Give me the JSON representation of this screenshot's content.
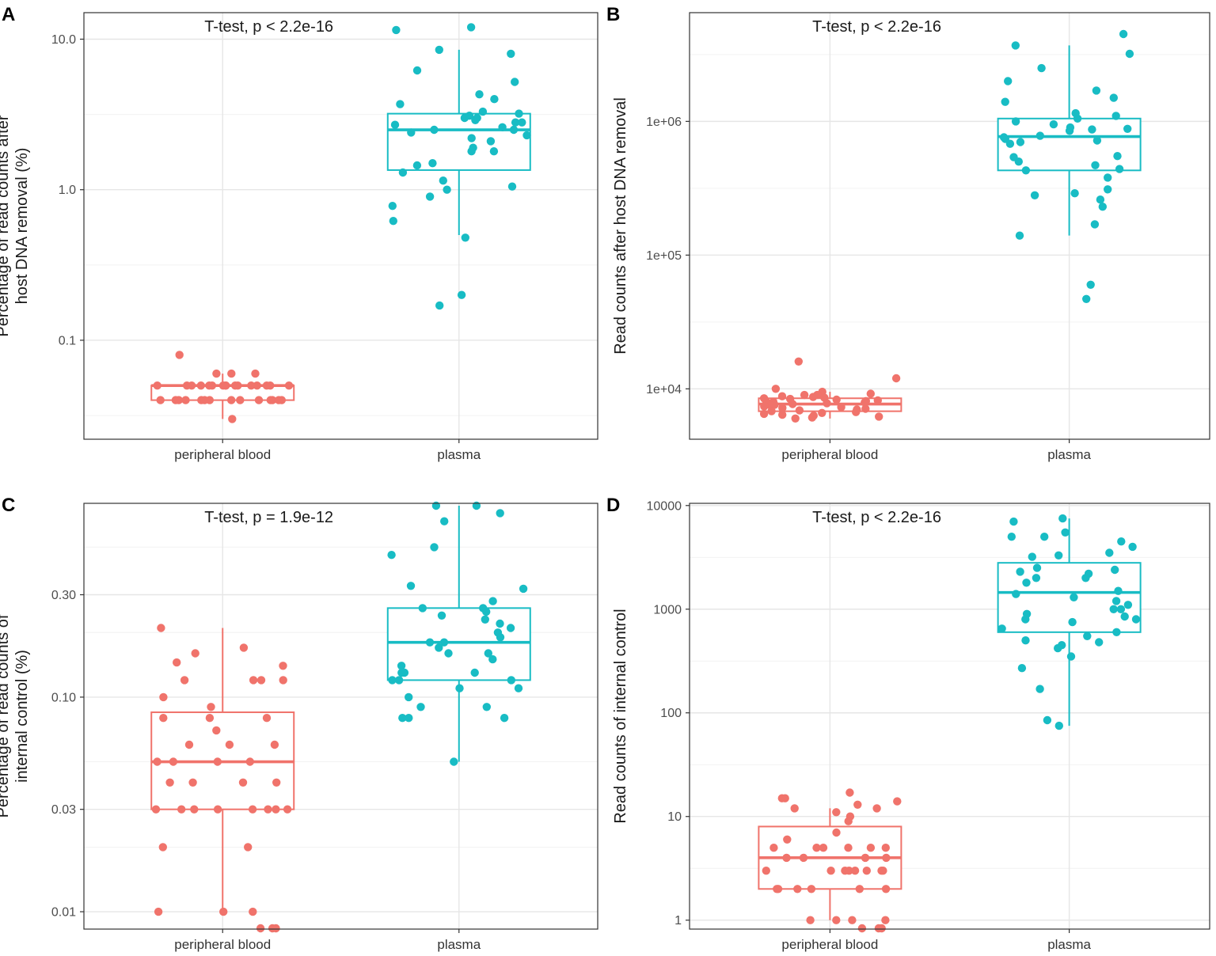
{
  "colors": {
    "peripheral_blood": "#F0736B",
    "plasma": "#18BCC4"
  },
  "chart_data": [
    {
      "panel": "A",
      "type": "box",
      "annotation": "T-test, p < 2.2e-16",
      "ylabel": [
        "Percentage of read counts after",
        "host DNA removal (%)"
      ],
      "yscale": "log10",
      "ylim": [
        0.022,
        15
      ],
      "yticks": [
        {
          "v": 0.1,
          "label": "0.1"
        },
        {
          "v": 1,
          "label": "1.0"
        },
        {
          "v": 10,
          "label": "10.0"
        }
      ],
      "yminor": [
        0.0316,
        0.316,
        3.16
      ],
      "categories": [
        "peripheral blood",
        "plasma"
      ],
      "series": [
        {
          "name": "peripheral blood",
          "color_key": "peripheral_blood",
          "box": {
            "q1": 0.04,
            "median": 0.05,
            "q3": 0.05,
            "lo": 0.03,
            "hi": 0.06
          },
          "points": [
            0.08,
            0.06,
            0.06,
            0.06,
            0.05,
            0.05,
            0.05,
            0.05,
            0.05,
            0.05,
            0.05,
            0.05,
            0.05,
            0.05,
            0.05,
            0.05,
            0.05,
            0.05,
            0.05,
            0.05,
            0.04,
            0.04,
            0.04,
            0.04,
            0.04,
            0.04,
            0.04,
            0.04,
            0.04,
            0.04,
            0.04,
            0.04,
            0.04,
            0.04,
            0.03
          ]
        },
        {
          "name": "plasma",
          "color_key": "plasma",
          "box": {
            "q1": 1.35,
            "median": 2.5,
            "q3": 3.2,
            "lo": 0.5,
            "hi": 8.5
          },
          "points": [
            12,
            11.5,
            8.5,
            8.0,
            6.2,
            5.2,
            4.3,
            4.0,
            3.7,
            3.3,
            3.2,
            3.1,
            3.0,
            3.0,
            2.9,
            2.8,
            2.8,
            2.7,
            2.6,
            2.5,
            2.5,
            2.4,
            2.3,
            2.2,
            2.1,
            1.9,
            1.8,
            1.8,
            1.5,
            1.45,
            1.3,
            1.15,
            1.05,
            1.0,
            0.9,
            0.78,
            0.62,
            0.48,
            0.2,
            0.17
          ]
        }
      ]
    },
    {
      "panel": "B",
      "type": "box",
      "annotation": "T-test, p < 2.2e-16",
      "ylabel": [
        "Read counts after host DNA removal"
      ],
      "yscale": "log10",
      "ylim": [
        4200,
        6500000
      ],
      "yticks": [
        {
          "v": 10000,
          "label": "1e+04"
        },
        {
          "v": 100000,
          "label": "1e+05"
        },
        {
          "v": 1000000,
          "label": "1e+06"
        }
      ],
      "yminor": [
        31600,
        316000,
        3160000
      ],
      "categories": [
        "peripheral blood",
        "plasma"
      ],
      "series": [
        {
          "name": "peripheral blood",
          "color_key": "peripheral_blood",
          "box": {
            "q1": 6800,
            "median": 7700,
            "q3": 8500,
            "lo": 6000,
            "hi": 9500
          },
          "points": [
            16000,
            12000,
            10000,
            9500,
            9200,
            9000,
            9000,
            8800,
            8700,
            8600,
            8500,
            8400,
            8300,
            8200,
            8100,
            8000,
            8000,
            7900,
            7800,
            7700,
            7600,
            7500,
            7400,
            7300,
            7200,
            7100,
            7000,
            6900,
            6800,
            6700,
            6600,
            6500,
            6400,
            6300,
            6200,
            6100,
            6000
          ]
        },
        {
          "name": "plasma",
          "color_key": "plasma",
          "box": {
            "q1": 430000,
            "median": 770000,
            "q3": 1050000,
            "lo": 140000,
            "hi": 3700000
          },
          "points": [
            4500000,
            3700000,
            3200000,
            2500000,
            2000000,
            1700000,
            1500000,
            1400000,
            1150000,
            1100000,
            1050000,
            1000000,
            950000,
            900000,
            880000,
            870000,
            850000,
            780000,
            760000,
            740000,
            720000,
            700000,
            680000,
            550000,
            540000,
            500000,
            470000,
            440000,
            430000,
            380000,
            310000,
            290000,
            280000,
            260000,
            230000,
            170000,
            140000,
            60000,
            47000
          ]
        }
      ]
    },
    {
      "panel": "C",
      "type": "box",
      "annotation": "T-test, p = 1.9e-12",
      "ylabel": [
        "Percentage of read counts of",
        "internal control (%)"
      ],
      "yscale": "log10",
      "ylim": [
        0.0083,
        0.8
      ],
      "yticks": [
        {
          "v": 0.01,
          "label": "0.01"
        },
        {
          "v": 0.03,
          "label": "0.03"
        },
        {
          "v": 0.1,
          "label": "0.10"
        },
        {
          "v": 0.3,
          "label": "0.30"
        }
      ],
      "yminor": [
        0.02,
        0.05,
        0.2,
        0.5
      ],
      "categories": [
        "peripheral blood",
        "plasma"
      ],
      "series": [
        {
          "name": "peripheral blood",
          "color_key": "peripheral_blood",
          "box": {
            "q1": 0.03,
            "median": 0.05,
            "q3": 0.085,
            "lo": 0.01,
            "hi": 0.21
          },
          "points": [
            0.21,
            0.17,
            0.16,
            0.145,
            0.14,
            0.12,
            0.12,
            0.12,
            0.12,
            0.1,
            0.09,
            0.08,
            0.08,
            0.08,
            0.07,
            0.06,
            0.06,
            0.06,
            0.05,
            0.05,
            0.05,
            0.05,
            0.04,
            0.04,
            0.04,
            0.04,
            0.03,
            0.03,
            0.03,
            0.03,
            0.03,
            0.03,
            0.03,
            0.03,
            0.02,
            0.02,
            0.01,
            0.01,
            0.01,
            0.0083,
            0.0083,
            0.0083
          ]
        },
        {
          "name": "plasma",
          "color_key": "plasma",
          "box": {
            "q1": 0.12,
            "median": 0.18,
            "q3": 0.26,
            "lo": 0.05,
            "hi": 0.78
          },
          "points": [
            0.78,
            0.78,
            0.72,
            0.66,
            0.5,
            0.46,
            0.33,
            0.32,
            0.28,
            0.26,
            0.26,
            0.25,
            0.24,
            0.23,
            0.22,
            0.21,
            0.2,
            0.19,
            0.18,
            0.18,
            0.17,
            0.16,
            0.16,
            0.15,
            0.14,
            0.13,
            0.13,
            0.13,
            0.12,
            0.12,
            0.12,
            0.11,
            0.11,
            0.1,
            0.09,
            0.09,
            0.08,
            0.08,
            0.08,
            0.05
          ]
        }
      ]
    },
    {
      "panel": "D",
      "type": "box",
      "annotation": "T-test, p < 2.2e-16",
      "ylabel": [
        "Read counts of internal control"
      ],
      "yscale": "log10",
      "ylim": [
        0.82,
        10500
      ],
      "yticks": [
        {
          "v": 1,
          "label": "1"
        },
        {
          "v": 10,
          "label": "10"
        },
        {
          "v": 100,
          "label": "100"
        },
        {
          "v": 1000,
          "label": "1000"
        },
        {
          "v": 10000,
          "label": "10000"
        }
      ],
      "yminor": [
        3.16,
        31.6,
        316,
        3160
      ],
      "categories": [
        "peripheral blood",
        "plasma"
      ],
      "series": [
        {
          "name": "peripheral blood",
          "color_key": "peripheral_blood",
          "box": {
            "q1": 2,
            "median": 4,
            "q3": 8,
            "lo": 1,
            "hi": 12
          },
          "points": [
            17,
            15,
            15,
            14,
            13,
            12,
            12,
            11,
            10,
            9,
            7,
            6,
            5,
            5,
            5,
            5,
            5,
            5,
            4,
            4,
            4,
            4,
            3,
            3,
            3,
            3,
            3,
            3,
            3,
            3,
            2,
            2,
            2,
            2,
            2,
            2,
            1,
            1,
            1,
            1,
            0.82,
            0.82,
            0.82
          ]
        },
        {
          "name": "plasma",
          "color_key": "plasma",
          "box": {
            "q1": 600,
            "median": 1450,
            "q3": 2800,
            "lo": 75,
            "hi": 7500
          },
          "points": [
            7500,
            7000,
            5500,
            5000,
            5000,
            4500,
            4000,
            3500,
            3300,
            3200,
            2500,
            2400,
            2300,
            2200,
            2000,
            2000,
            1800,
            1500,
            1400,
            1300,
            1200,
            1100,
            1000,
            1000,
            900,
            850,
            800,
            800,
            750,
            650,
            600,
            550,
            500,
            480,
            450,
            420,
            350,
            270,
            170,
            85,
            75
          ]
        }
      ]
    }
  ],
  "panel_labels": [
    "A",
    "B",
    "C",
    "D"
  ]
}
